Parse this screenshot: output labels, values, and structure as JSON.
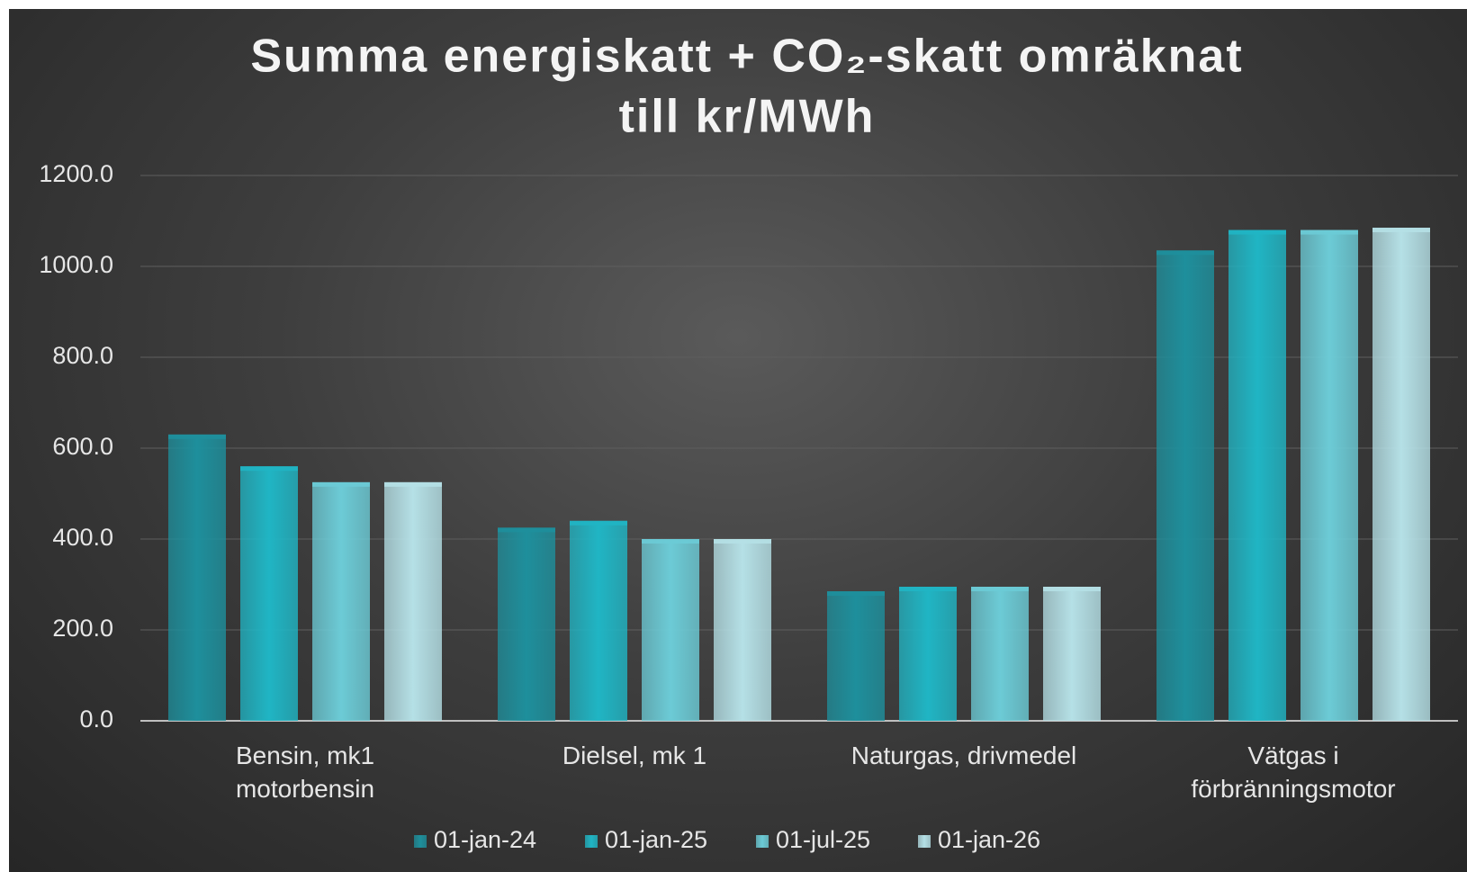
{
  "chart_data": {
    "type": "bar",
    "title": [
      "Summa energiskatt + CO₂-skatt omräknat",
      "till kr/MWh"
    ],
    "categories": [
      "Bensin, mk1 motorbensin",
      "Dielsel, mk 1",
      "Naturgas, drivmedel",
      "Vätgas i förbränningsmotor"
    ],
    "series": [
      {
        "name": "01-jan-24",
        "color": "#1e8f9c",
        "values": [
          630,
          425,
          285,
          1035
        ]
      },
      {
        "name": "01-jan-25",
        "color": "#20b5c4",
        "values": [
          560,
          440,
          295,
          1080
        ]
      },
      {
        "name": "01-jul-25",
        "color": "#6ccbd6",
        "values": [
          525,
          400,
          295,
          1080
        ]
      },
      {
        "name": "01-jan-26",
        "color": "#b5e0e6",
        "values": [
          525,
          400,
          295,
          1085
        ]
      }
    ],
    "ylim": [
      0,
      1200
    ],
    "yticks": [
      {
        "value": 0,
        "label": "0.0"
      },
      {
        "value": 200,
        "label": "200.0"
      },
      {
        "value": 400,
        "label": "400.0"
      },
      {
        "value": 600,
        "label": "600.0"
      },
      {
        "value": 800,
        "label": "800.0"
      },
      {
        "value": 1000,
        "label": "1000.0"
      },
      {
        "value": 1200,
        "label": "1200.0"
      }
    ],
    "grid": true,
    "legend": "bottom"
  }
}
